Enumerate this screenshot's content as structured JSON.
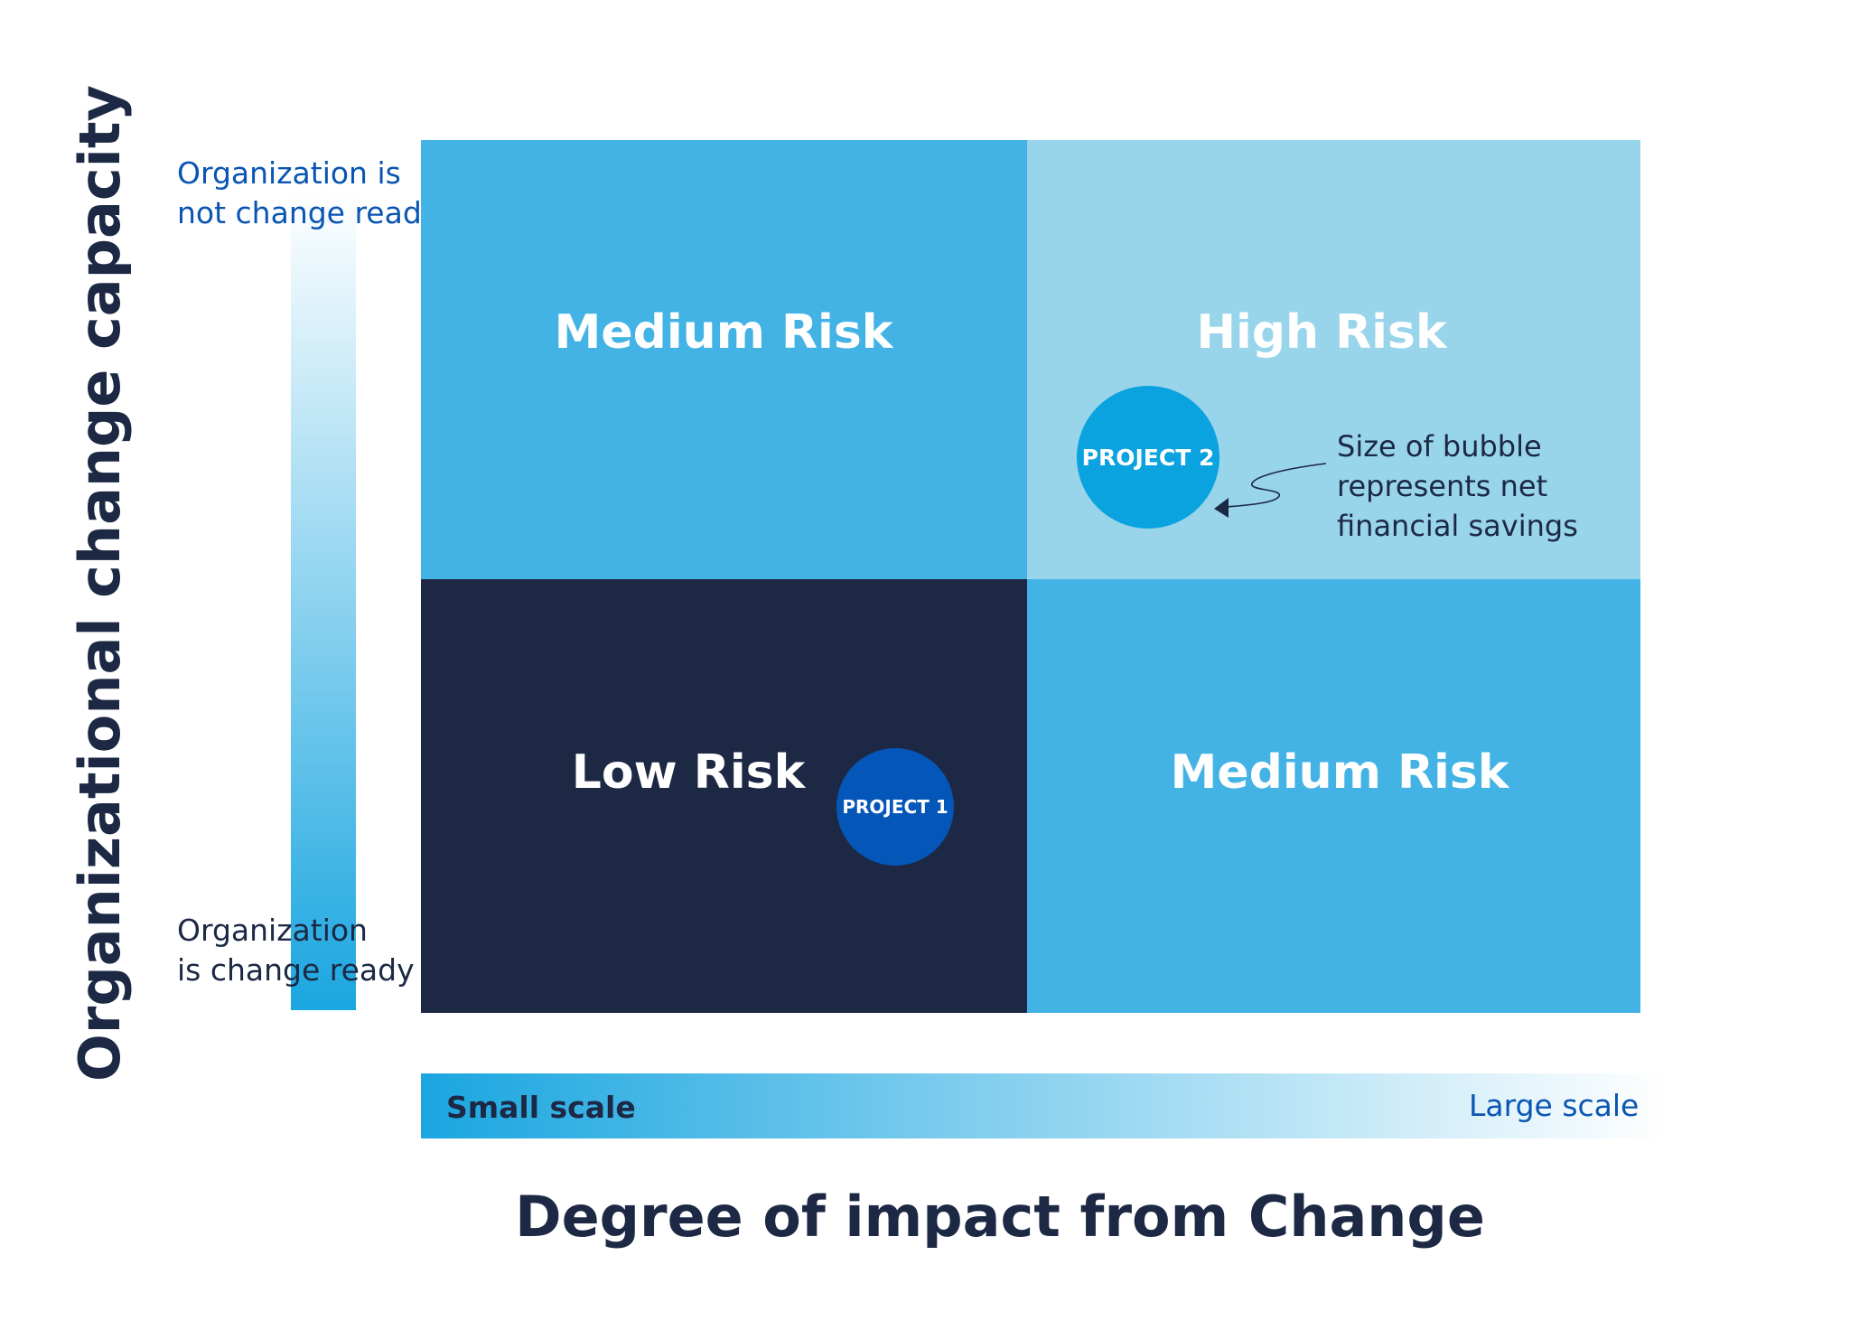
{
  "y_axis": {
    "title": "Organizational change capacity",
    "top_label": "Organization is\nnot change ready",
    "bottom_label": "Organization\nis  change ready"
  },
  "x_axis": {
    "title": "Degree of impact from Change",
    "left_label": "Small scale",
    "right_label": "Large scale"
  },
  "quadrants": {
    "top_left": "Medium Risk",
    "top_right": "High Risk",
    "bottom_left": "Low Risk",
    "bottom_right": "Medium Risk"
  },
  "bubbles": {
    "project_2": "PROJECT 2",
    "project_1": "PROJECT 1"
  },
  "note": "Size of bubble\nrepresents net\nfinancial savings",
  "colors": {
    "dark_navy": "#1d2844",
    "medium_blue": "#42b3e4",
    "light_blue": "#98d4ea",
    "bubble_cyan": "#0aa3e0",
    "bubble_royal": "#0456b8",
    "label_blue": "#0a55b3"
  }
}
